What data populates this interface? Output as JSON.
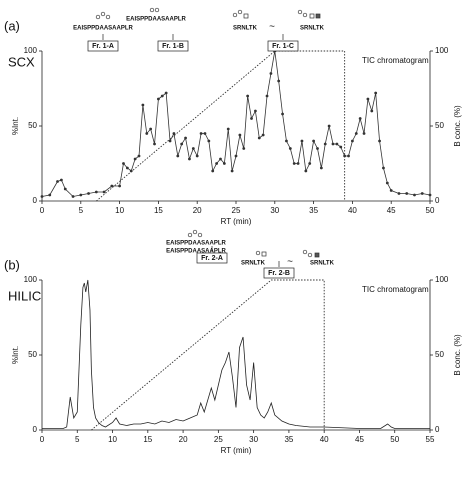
{
  "chart_data": [
    {
      "type": "line",
      "panel": "(a)",
      "method": "SCX",
      "y_label": "%Int.",
      "y2_label": "B conc. (%)",
      "x_label": "RT (min)",
      "trace_label": "TIC chromatogram",
      "fractions": [
        "Fr. 1-A",
        "Fr. 1-B",
        "Fr. 1-C"
      ],
      "peptides": [
        "EAISPPDAASAAPLR",
        "EAISPPDAASAAPLR",
        "SRNLTK",
        "SRNLTK"
      ],
      "separator": "~",
      "markers": true,
      "color": "#333333",
      "xlim": [
        0,
        50
      ],
      "xticks": [
        0,
        5,
        10,
        15,
        20,
        25,
        30,
        35,
        40,
        45,
        50
      ],
      "ylim": [
        0,
        100
      ],
      "yticks": [
        0,
        50,
        100
      ],
      "y2lim": [
        0,
        100
      ],
      "y2ticks": [
        0,
        50,
        100
      ],
      "x": [
        0,
        1,
        2,
        2.5,
        3,
        4,
        5,
        6,
        7,
        8,
        9,
        10,
        10.5,
        11,
        11.5,
        12,
        12.5,
        13,
        13.5,
        14,
        14.5,
        15,
        15.5,
        16,
        16.5,
        17,
        17.5,
        18,
        18.5,
        19,
        19.5,
        20,
        20.5,
        21,
        21.5,
        22,
        22.5,
        23,
        23.5,
        24,
        24.5,
        25,
        25.5,
        26,
        26.5,
        27,
        27.5,
        28,
        28.5,
        29,
        29.5,
        30,
        30.5,
        31,
        31.5,
        32,
        32.5,
        33,
        33.5,
        34,
        34.5,
        35,
        35.5,
        36,
        36.5,
        37,
        37.5,
        38,
        38.5,
        39,
        39.5,
        40,
        40.5,
        41,
        41.5,
        42,
        42.5,
        43,
        43.5,
        44,
        44.5,
        45,
        46,
        47,
        48,
        49,
        50
      ],
      "values": [
        3,
        4,
        13,
        14,
        8,
        3,
        4,
        5,
        6,
        6,
        10,
        10,
        25,
        22,
        20,
        28,
        30,
        64,
        45,
        48,
        38,
        68,
        70,
        72,
        40,
        45,
        30,
        38,
        42,
        28,
        35,
        30,
        45,
        45,
        40,
        20,
        25,
        28,
        25,
        48,
        20,
        30,
        44,
        35,
        70,
        55,
        60,
        42,
        44,
        70,
        85,
        100,
        80,
        58,
        40,
        35,
        25,
        25,
        40,
        20,
        25,
        40,
        35,
        22,
        38,
        50,
        38,
        38,
        36,
        30,
        30,
        40,
        45,
        55,
        45,
        68,
        60,
        72,
        40,
        22,
        12,
        7,
        5,
        5,
        4,
        5,
        4
      ],
      "gradient": {
        "x": [
          7,
          30,
          39,
          39
        ],
        "values": [
          0,
          100,
          100,
          0
        ],
        "axis": "y2"
      }
    },
    {
      "type": "line",
      "panel": "(b)",
      "method": "HILIC",
      "y_label": "%Int.",
      "y2_label": "B conc. (%)",
      "x_label": "RT (min)",
      "trace_label": "TIC chromatogram",
      "fractions": [
        "Fr. 2-A",
        "Fr. 2-B"
      ],
      "peptides": [
        "EAISPPDAASAAPLR",
        "EAISPPDAASAAPLR",
        "SRNLTK",
        "SRNLTK"
      ],
      "separator": "~",
      "markers": false,
      "color": "#222222",
      "xlim": [
        0,
        55
      ],
      "xticks": [
        0,
        5,
        10,
        15,
        20,
        25,
        30,
        35,
        40,
        45,
        50,
        55
      ],
      "ylim": [
        0,
        100
      ],
      "yticks": [
        0,
        50,
        100
      ],
      "y2lim": [
        0,
        100
      ],
      "y2ticks": [
        0,
        50,
        100
      ],
      "x": [
        0,
        3,
        3.5,
        4,
        4.5,
        5,
        5.5,
        5.8,
        6,
        6.2,
        6.5,
        6.8,
        7,
        7.3,
        7.6,
        8,
        8.5,
        9,
        10,
        10.5,
        11,
        12,
        13,
        14,
        15,
        16,
        17,
        18,
        19,
        20,
        21,
        22,
        22.5,
        23,
        23.5,
        24,
        24.5,
        25,
        25.5,
        26,
        26.5,
        27,
        27.5,
        28,
        28.5,
        29,
        29.5,
        30,
        30.5,
        31,
        31.5,
        32,
        32.5,
        33,
        34,
        35,
        36,
        38,
        40,
        45,
        48,
        49,
        49.5,
        50,
        55
      ],
      "values": [
        1,
        1,
        2,
        22,
        8,
        12,
        70,
        95,
        98,
        92,
        100,
        80,
        40,
        15,
        8,
        5,
        3,
        2,
        5,
        8,
        4,
        3,
        4,
        4,
        5,
        4,
        6,
        5,
        7,
        6,
        8,
        10,
        18,
        12,
        20,
        28,
        20,
        30,
        40,
        45,
        52,
        35,
        15,
        55,
        62,
        30,
        20,
        45,
        15,
        10,
        8,
        12,
        18,
        10,
        6,
        4,
        3,
        2,
        2,
        1,
        1,
        4,
        2,
        1,
        1
      ],
      "gradient": {
        "x": [
          7,
          32.5,
          40,
          40
        ],
        "values": [
          0,
          100,
          100,
          0
        ],
        "axis": "y2"
      }
    }
  ]
}
